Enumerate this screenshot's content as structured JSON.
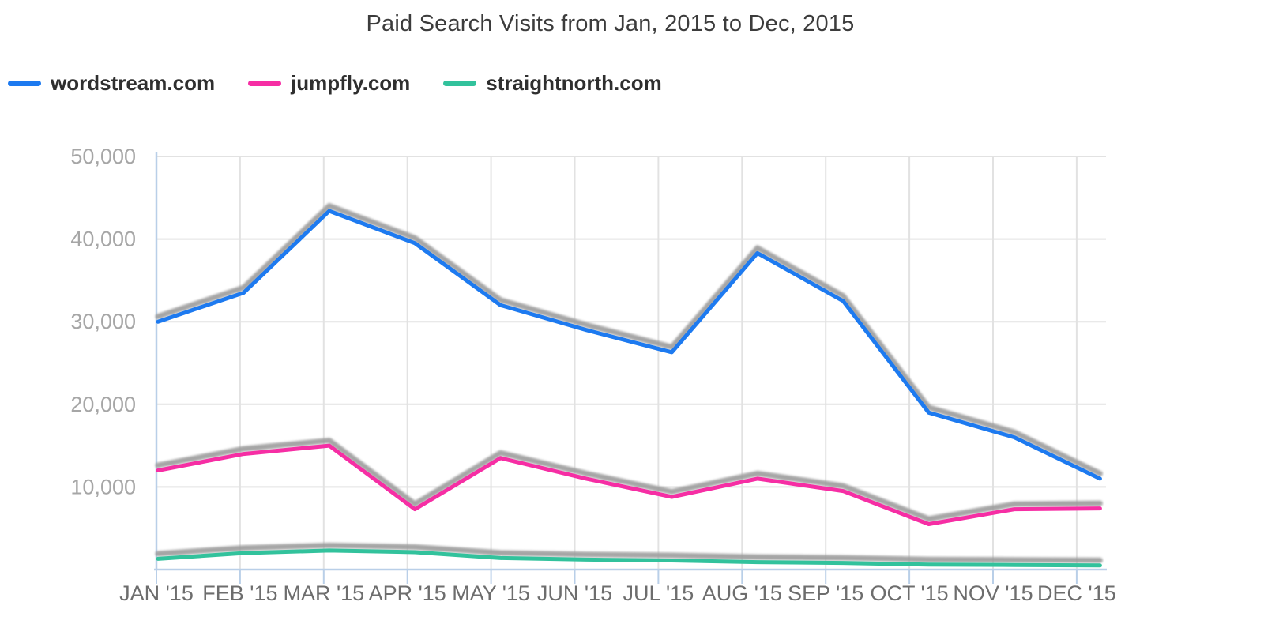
{
  "title": "Paid Search Visits from Jan, 2015 to Dec, 2015",
  "colors": {
    "background": "#ffffff",
    "title_text": "#3c3c3c",
    "legend_text": "#2f2f2f",
    "axis_line": "#b9cfe8",
    "gridline": "#e2e2e2",
    "shadow": "#9c9c9c",
    "y_tick_label": "#a6a6a6",
    "x_tick_label": "#6d6d6d"
  },
  "chart_data": {
    "type": "line",
    "title": "Paid Search Visits from Jan, 2015 to Dec, 2015",
    "x": [
      "JAN '15",
      "FEB '15",
      "MAR '15",
      "APR '15",
      "MAY '15",
      "JUN '15",
      "JUL '15",
      "AUG '15",
      "SEP '15",
      "OCT '15",
      "NOV '15",
      "DEC '15"
    ],
    "series": [
      {
        "name": "wordstream.com",
        "color": "#1d7af0",
        "values": [
          30000,
          33500,
          43400,
          39500,
          32000,
          29000,
          26300,
          38300,
          32500,
          19000,
          16000,
          11000
        ]
      },
      {
        "name": "jumpfly.com",
        "color": "#f62ea4",
        "values": [
          12000,
          14000,
          15000,
          7300,
          13500,
          11000,
          8800,
          11000,
          9500,
          5500,
          7300,
          7400
        ]
      },
      {
        "name": "straightnorth.com",
        "color": "#32c29c",
        "values": [
          1300,
          2000,
          2300,
          2100,
          1400,
          1200,
          1100,
          900,
          800,
          600,
          550,
          500
        ]
      }
    ],
    "xlabel": "",
    "ylabel": "",
    "ylim": [
      0,
      50000
    ],
    "y_ticks": [
      10000,
      20000,
      30000,
      40000,
      50000
    ],
    "grid": true,
    "legend_position": "top-left",
    "line_shadow": "gray shadow offset above each line"
  }
}
